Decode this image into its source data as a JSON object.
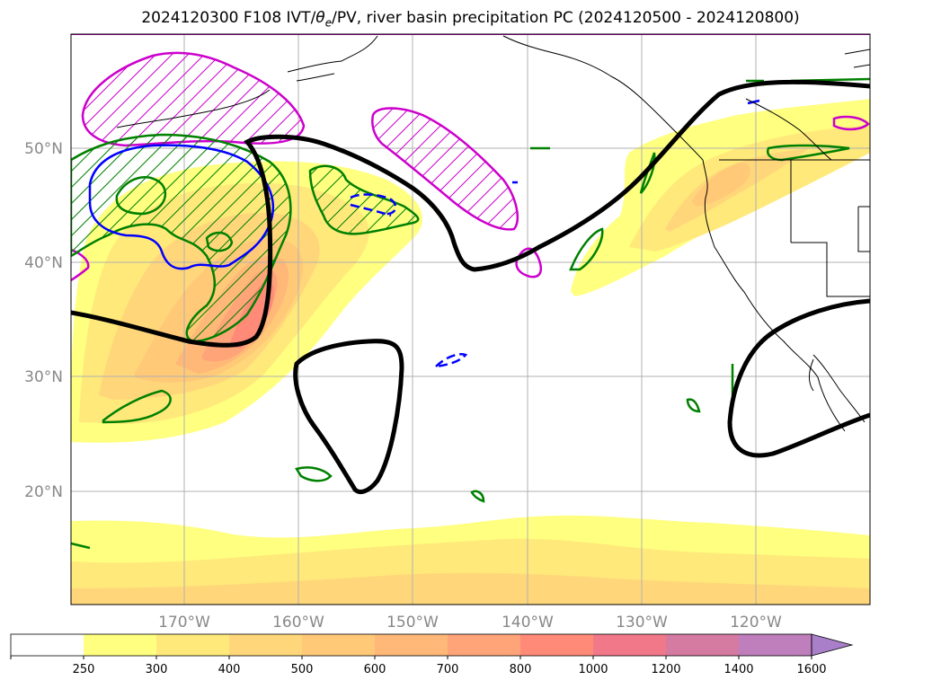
{
  "title": {
    "prefix": "2024120300 F108 IVT/",
    "theta": "θ",
    "theta_sub": "e",
    "suffix": "/PV, river basin precipitation PC (2024120500 - 2024120800)"
  },
  "map": {
    "latitude_labels": [
      "50°N",
      "40°N",
      "30°N",
      "20°N"
    ],
    "longitude_labels": [
      "170°W",
      "160°W",
      "150°W",
      "140°W",
      "130°W",
      "120°W"
    ],
    "colors": {
      "pv_contour": "#cc00cc",
      "theta_contour": "#008000",
      "blue_contour": "#0000ff",
      "jet_contour": "#000000",
      "coastline": "#000000"
    }
  },
  "colorbar": {
    "levels": [
      "250",
      "300",
      "400",
      "500",
      "600",
      "700",
      "800",
      "1000",
      "1200",
      "1400",
      "1600"
    ],
    "colors": [
      "#ffffff",
      "#ffff80",
      "#ffe97a",
      "#ffd77a",
      "#ffc978",
      "#ffb878",
      "#ffa478",
      "#ff8a78",
      "#f07888",
      "#d57aa0",
      "#bf7ebc",
      "#a87fc8"
    ]
  }
}
